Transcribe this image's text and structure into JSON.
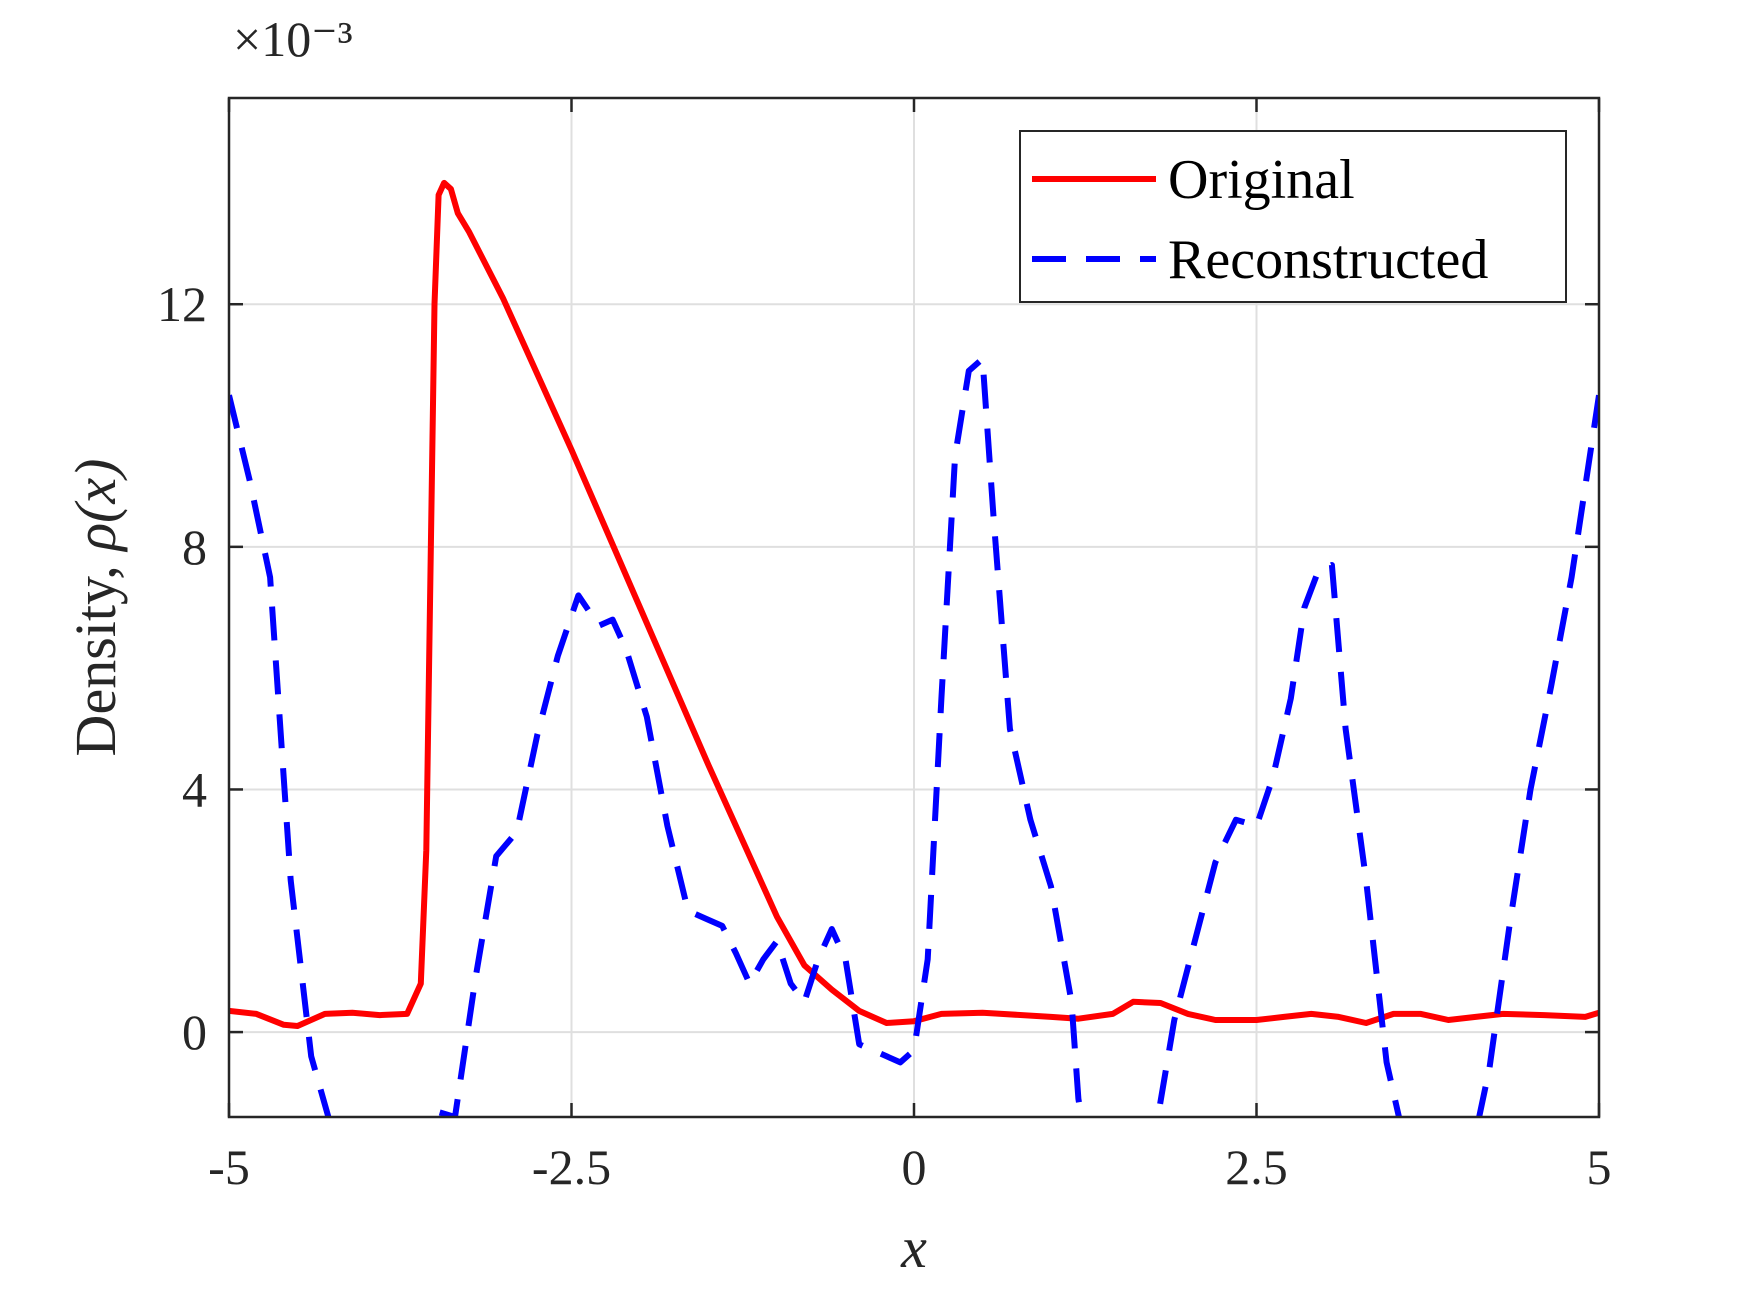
{
  "chart_data": {
    "type": "line",
    "xlabel": "x",
    "ylabel_prefix": "Density, ",
    "ylabel_math": "ρ(x)",
    "exponent_label": "×10⁻³",
    "xlim": [
      -5,
      5
    ],
    "ylim": [
      -1.4,
      15.4
    ],
    "xticks": [
      -5,
      -2.5,
      0,
      2.5,
      5
    ],
    "xtick_labels": [
      "-5",
      "-2.5",
      "0",
      "2.5",
      "5"
    ],
    "yticks": [
      0,
      4,
      8,
      12
    ],
    "ytick_labels": [
      "0",
      "4",
      "8",
      "12"
    ],
    "grid": true,
    "legend_position": "top-right",
    "series": [
      {
        "name": "Original",
        "color": "#ff0000",
        "style": "solid",
        "x": [
          -5.0,
          -4.8,
          -4.6,
          -4.5,
          -4.3,
          -4.1,
          -3.9,
          -3.7,
          -3.6,
          -3.56,
          -3.53,
          -3.5,
          -3.47,
          -3.43,
          -3.38,
          -3.33,
          -3.25,
          -3.0,
          -2.5,
          -2.0,
          -1.5,
          -1.0,
          -0.8,
          -0.6,
          -0.4,
          -0.2,
          0.0,
          0.2,
          0.5,
          1.0,
          1.2,
          1.45,
          1.6,
          1.8,
          2.0,
          2.2,
          2.5,
          2.7,
          2.9,
          3.1,
          3.3,
          3.5,
          3.7,
          3.9,
          4.1,
          4.3,
          4.6,
          4.9,
          5.0
        ],
        "y": [
          0.35,
          0.3,
          0.12,
          0.1,
          0.3,
          0.32,
          0.28,
          0.3,
          0.8,
          3.0,
          7.5,
          12.0,
          13.8,
          14.0,
          13.9,
          13.5,
          13.2,
          12.1,
          9.6,
          7.0,
          4.4,
          1.9,
          1.1,
          0.7,
          0.35,
          0.15,
          0.18,
          0.3,
          0.32,
          0.25,
          0.22,
          0.3,
          0.5,
          0.48,
          0.3,
          0.2,
          0.2,
          0.25,
          0.3,
          0.25,
          0.15,
          0.3,
          0.3,
          0.2,
          0.25,
          0.3,
          0.28,
          0.25,
          0.32
        ]
      },
      {
        "name": "Reconstructed",
        "color": "#0000ff",
        "style": "dashed",
        "x": [
          -5.0,
          -4.85,
          -4.7,
          -4.55,
          -4.4,
          -4.25,
          -4.1,
          -4.0,
          -3.9,
          -3.75,
          -3.6,
          -3.5,
          -3.35,
          -3.2,
          -3.05,
          -2.9,
          -2.75,
          -2.6,
          -2.45,
          -2.3,
          -2.2,
          -2.1,
          -1.95,
          -1.8,
          -1.65,
          -1.5,
          -1.4,
          -1.3,
          -1.2,
          -1.1,
          -1.0,
          -0.9,
          -0.8,
          -0.7,
          -0.6,
          -0.5,
          -0.4,
          -0.3,
          -0.2,
          -0.1,
          0.0,
          0.1,
          0.2,
          0.3,
          0.4,
          0.5,
          0.58,
          0.7,
          0.85,
          1.0,
          1.15,
          1.2,
          1.3,
          1.45,
          1.6,
          1.75,
          1.9,
          2.05,
          2.2,
          2.35,
          2.5,
          2.62,
          2.75,
          2.85,
          2.95,
          3.05,
          3.15,
          3.3,
          3.45,
          3.6,
          3.75,
          3.9,
          4.05,
          4.2,
          4.35,
          4.5,
          4.65,
          4.8,
          5.0
        ],
        "y": [
          10.5,
          9.1,
          7.5,
          2.5,
          -0.4,
          -1.6,
          -2.6,
          -3.0,
          -3.0,
          -2.6,
          -1.8,
          -1.3,
          -1.4,
          0.9,
          2.9,
          3.3,
          4.9,
          6.2,
          7.2,
          6.7,
          6.8,
          6.3,
          5.2,
          3.4,
          2.0,
          1.85,
          1.75,
          1.3,
          0.8,
          1.2,
          1.5,
          0.8,
          0.5,
          1.2,
          1.7,
          1.2,
          -0.2,
          -0.3,
          -0.4,
          -0.5,
          -0.3,
          1.2,
          5.5,
          9.5,
          10.9,
          11.1,
          8.5,
          5.0,
          3.5,
          2.4,
          0.5,
          -1.1,
          -2.5,
          -3.4,
          -3.2,
          -1.8,
          0.2,
          1.5,
          2.8,
          3.5,
          3.4,
          4.2,
          5.5,
          7.0,
          7.6,
          7.7,
          5.0,
          2.5,
          -0.5,
          -2.0,
          -2.8,
          -2.8,
          -2.2,
          -0.6,
          1.8,
          4.0,
          5.7,
          7.5,
          10.5
        ]
      }
    ]
  }
}
